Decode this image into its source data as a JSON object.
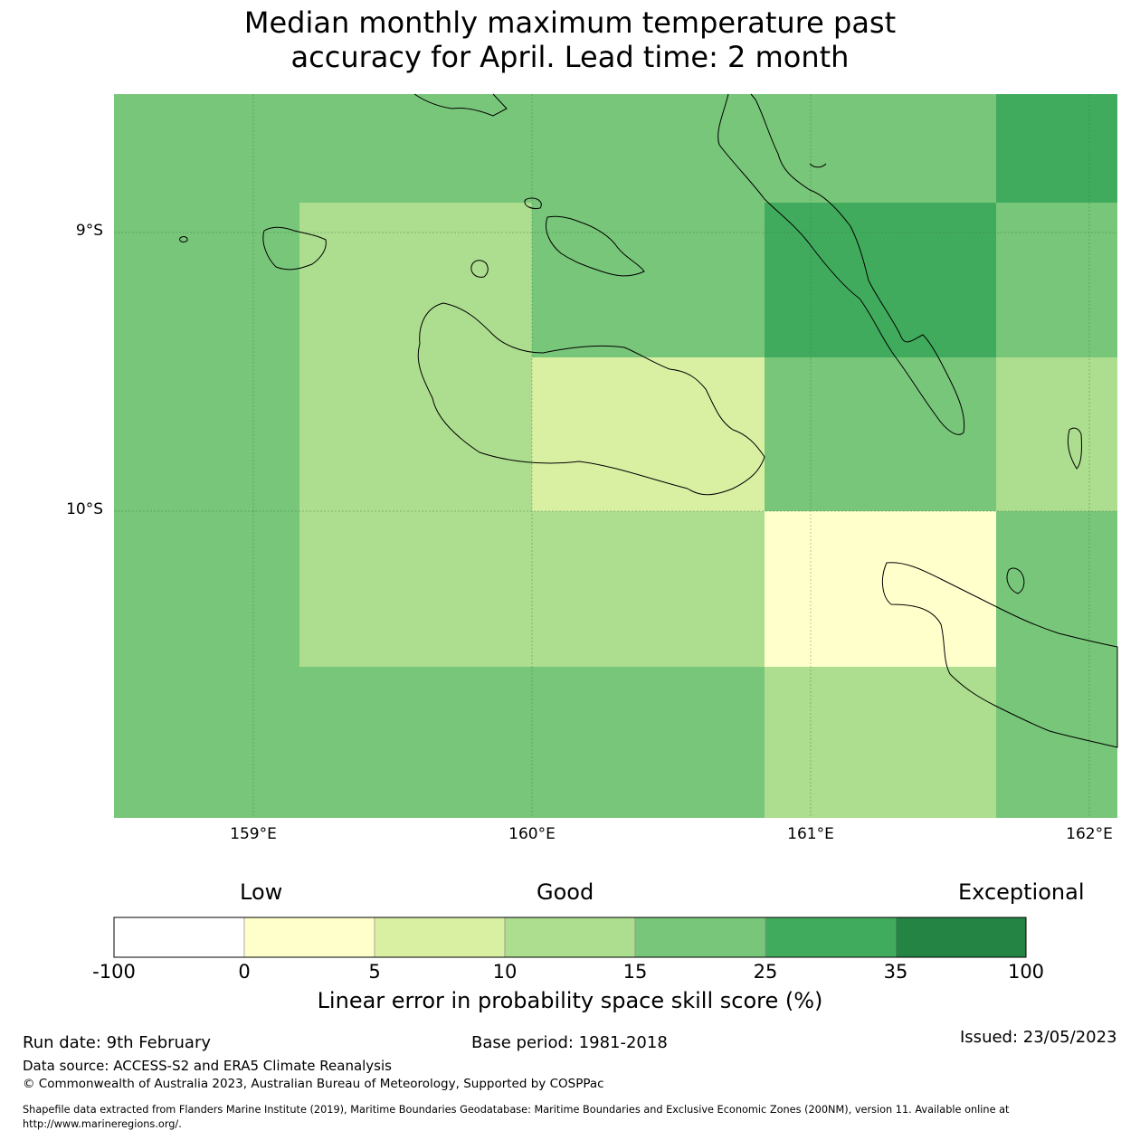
{
  "title": {
    "line1": "Median monthly maximum temperature past",
    "line2": "accuracy for April. Lead time: 2 month"
  },
  "map": {
    "lat_labels": [
      "9°S",
      "10°S"
    ],
    "lon_labels": [
      "159°E",
      "160°E",
      "161°E",
      "162°E"
    ],
    "grid": {
      "rows": [
        [
          {
            "cls": "15-25"
          },
          {
            "cls": "15-25"
          },
          {
            "cls": "15-25"
          },
          {
            "cls": "15-25"
          },
          {
            "cls": "25-35"
          }
        ],
        [
          {
            "cls": "15-25"
          },
          {
            "cls": "10-15"
          },
          {
            "cls": "15-25"
          },
          {
            "cls": "25-35"
          },
          {
            "cls": "15-25"
          }
        ],
        [
          {
            "cls": "15-25"
          },
          {
            "cls": "10-15"
          },
          {
            "cls": "5-10"
          },
          {
            "cls": "15-25"
          },
          {
            "cls": "10-15"
          }
        ],
        [
          {
            "cls": "15-25"
          },
          {
            "cls": "10-15"
          },
          {
            "cls": "10-15"
          },
          {
            "cls": "0-5"
          },
          {
            "cls": "15-25"
          }
        ],
        [
          {
            "cls": "15-25"
          },
          {
            "cls": "15-25"
          },
          {
            "cls": "15-25"
          },
          {
            "cls": "10-15"
          },
          {
            "cls": "15-25"
          }
        ]
      ]
    }
  },
  "colorbar": {
    "category_labels": {
      "low": "Low",
      "good": "Good",
      "exceptional": "Exceptional"
    },
    "bins": [
      {
        "from": -100,
        "to": 0,
        "color": "#ffffff"
      },
      {
        "from": 0,
        "to": 5,
        "color": "#ffffcc"
      },
      {
        "from": 5,
        "to": 10,
        "color": "#d9f0a3"
      },
      {
        "from": 10,
        "to": 15,
        "color": "#addd8e"
      },
      {
        "from": 15,
        "to": 25,
        "color": "#78c679"
      },
      {
        "from": 25,
        "to": 35,
        "color": "#41ab5d"
      },
      {
        "from": 35,
        "to": 100,
        "color": "#238443"
      }
    ],
    "ticks": [
      "-100",
      "0",
      "5",
      "10",
      "15",
      "25",
      "35",
      "100"
    ],
    "label": "Linear error in probability space skill score (%)"
  },
  "colors": {
    "0-5": "#ffffcc",
    "5-10": "#d9f0a3",
    "10-15": "#addd8e",
    "15-25": "#78c679",
    "25-35": "#41ab5d"
  },
  "footer": {
    "run_date": "Run date: 9th February",
    "base_period": "Base period: 1981-2018",
    "issued": "Issued: 23/05/2023",
    "data_source": "Data source: ACCESS-S2 and ERA5 Climate Reanalysis",
    "copyright": "© Commonwealth of Australia 2023, Australian Bureau of Meteorology, Supported by COSPPac",
    "shapefile_line1": "Shapefile data extracted from Flanders Marine Institute (2019), Maritime Boundaries Geodatabase: Maritime Boundaries and Exclusive Economic Zones (200NM), version 11. Available online at",
    "shapefile_line2": "http://www.marineregions.org/."
  }
}
